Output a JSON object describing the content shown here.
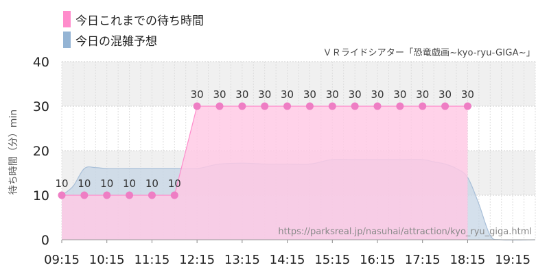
{
  "legend": {
    "actual_label": "今日これまでの待ち時間",
    "forecast_label": "今日の混雑予想"
  },
  "subtitle": "ＶＲライドシアター「恐竜戯画~kyo-ryu-GIGA~」",
  "watermark": "https://parksreal.jp/nasuhai/attraction/kyo_ryu_giga.html",
  "colors": {
    "actual_fill": "#ffc8e4",
    "actual_line": "#ff8ccc",
    "actual_point": "#ee7ec4",
    "forecast_fill": "#c4d4e4",
    "forecast_line": "#a8bfd8",
    "legend_actual": "#ff8ccc",
    "legend_forecast": "#94b4d4",
    "band": "#f0f0f0"
  },
  "chart_data": {
    "type": "area",
    "ylabel": "待ち時間（分）min",
    "ylim": [
      0,
      40
    ],
    "yticks": [
      0,
      10,
      20,
      30,
      40
    ],
    "xlim": [
      "09:15",
      "19:45"
    ],
    "xticks": [
      "09:15",
      "10:15",
      "11:15",
      "12:15",
      "13:15",
      "14:15",
      "15:15",
      "16:15",
      "17:15",
      "18:15",
      "19:15"
    ],
    "grid": true,
    "series": [
      {
        "name": "今日これまでの待ち時間",
        "kind": "area-with-points",
        "x": [
          "09:15",
          "09:45",
          "10:15",
          "10:45",
          "11:15",
          "11:45",
          "12:15",
          "12:45",
          "13:15",
          "13:45",
          "14:15",
          "14:45",
          "15:15",
          "15:45",
          "16:15",
          "16:45",
          "17:15",
          "17:45",
          "18:15"
        ],
        "values": [
          10,
          10,
          10,
          10,
          10,
          10,
          30,
          30,
          30,
          30,
          30,
          30,
          30,
          30,
          30,
          30,
          30,
          30,
          30
        ]
      },
      {
        "name": "今日の混雑予想",
        "kind": "smooth-area",
        "x": [
          "09:15",
          "09:30",
          "09:45",
          "10:00",
          "10:15",
          "10:45",
          "11:15",
          "11:45",
          "12:15",
          "12:30",
          "12:45",
          "13:15",
          "13:45",
          "14:15",
          "14:45",
          "15:00",
          "15:15",
          "15:45",
          "16:15",
          "16:45",
          "17:15",
          "17:30",
          "17:45",
          "18:00",
          "18:15",
          "18:30",
          "18:45",
          "19:00",
          "19:45"
        ],
        "values": [
          10,
          12,
          16,
          16.2,
          16,
          16,
          16,
          16,
          16,
          16.5,
          17,
          17.2,
          17,
          17,
          17,
          17.5,
          18,
          18,
          18,
          18,
          18,
          17.5,
          17,
          16,
          14,
          8,
          1,
          0,
          0
        ]
      }
    ]
  }
}
